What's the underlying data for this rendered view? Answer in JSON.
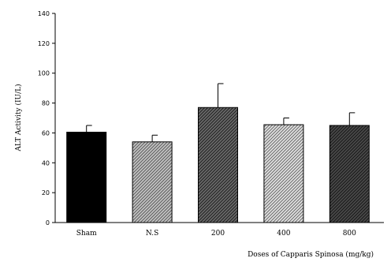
{
  "chart_data": {
    "type": "bar",
    "categories": [
      "Sham",
      "N.S",
      "200",
      "400",
      "800"
    ],
    "values": [
      60.5,
      54,
      77,
      65.5,
      65
    ],
    "errors": [
      4.5,
      4.5,
      16,
      4.5,
      8.5
    ],
    "ylabel": "ALT Activity (IU/L)",
    "xlabel": "Doses of Capparis Spinosa (mg/kg)",
    "ylim": [
      0,
      140
    ],
    "yticks": [
      "0",
      "20",
      "40",
      "60",
      "80",
      "100",
      "120",
      "140"
    ],
    "grid": false,
    "bar_fills": [
      {
        "background": "#000000",
        "stripe": "none"
      },
      {
        "background": "#c4c4c4",
        "stripe": "#5a5a5a"
      },
      {
        "background": "#6a6a6a",
        "stripe": "#1e1e1e"
      },
      {
        "background": "#e2e2e2",
        "stripe": "#6a6a6a"
      },
      {
        "background": "#4a4a4a",
        "stripe": "#161616"
      }
    ]
  }
}
